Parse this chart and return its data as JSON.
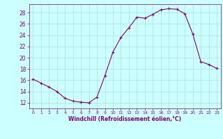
{
  "x": [
    0,
    1,
    2,
    3,
    4,
    5,
    6,
    7,
    8,
    9,
    10,
    11,
    12,
    13,
    14,
    15,
    16,
    17,
    18,
    19,
    20,
    21,
    22,
    23
  ],
  "y": [
    16.2,
    15.5,
    14.8,
    14.0,
    12.8,
    12.3,
    12.1,
    12.0,
    13.0,
    16.8,
    21.0,
    23.6,
    25.3,
    27.2,
    27.0,
    27.7,
    28.5,
    28.7,
    28.6,
    27.8,
    24.2,
    19.3,
    18.8,
    18.1
  ],
  "line_color": "#800080",
  "marker": "+",
  "marker_size": 3,
  "marker_linewidth": 0.8,
  "line_width": 0.8,
  "bg_color": "#ccffff",
  "grid_color": "#aadddd",
  "xlabel": "Windchill (Refroidissement éolien,°C)",
  "xlabel_color": "#800080",
  "tick_color": "#800080",
  "spine_color": "#800080",
  "ylim": [
    11,
    29.5
  ],
  "xlim": [
    -0.5,
    23.5
  ],
  "yticks": [
    12,
    14,
    16,
    18,
    20,
    22,
    24,
    26,
    28
  ],
  "xticks": [
    0,
    1,
    2,
    3,
    4,
    5,
    6,
    7,
    8,
    9,
    10,
    11,
    12,
    13,
    14,
    15,
    16,
    17,
    18,
    19,
    20,
    21,
    22,
    23
  ],
  "xlabel_fontsize": 5.5,
  "xtick_fontsize": 4.5,
  "ytick_fontsize": 5.5
}
